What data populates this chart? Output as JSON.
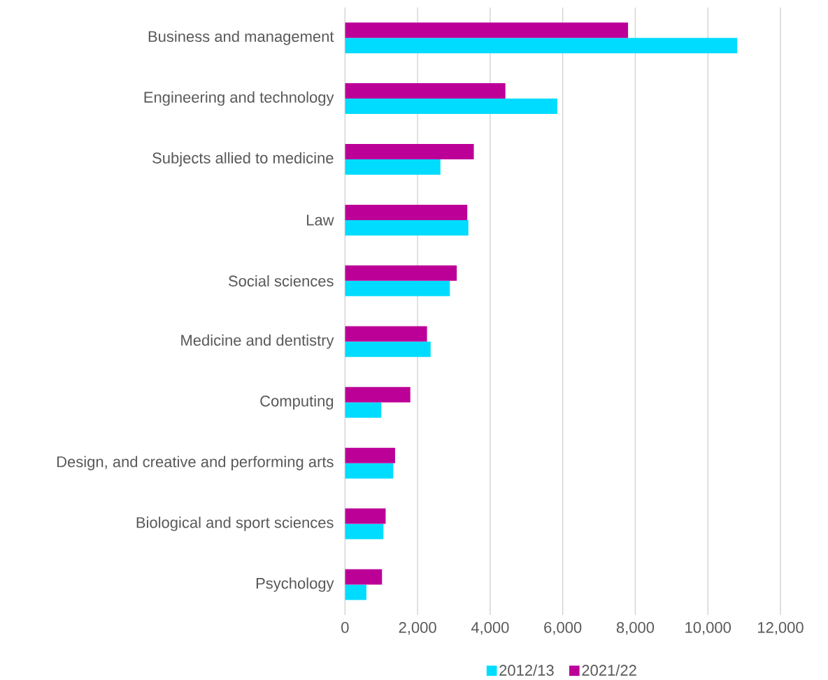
{
  "chart_data": {
    "type": "bar",
    "orientation": "horizontal",
    "categories": [
      "Business and management",
      "Engineering and technology",
      "Subjects allied to medicine",
      "Law",
      "Social sciences",
      "Medicine and dentistry",
      "Computing",
      "Design, and creative and performing arts",
      "Biological and sport sciences",
      "Psychology"
    ],
    "series": [
      {
        "name": "2012/13",
        "color": "#00dcff",
        "values": [
          10810,
          5850,
          2630,
          3400,
          2890,
          2360,
          1000,
          1330,
          1060,
          590
        ]
      },
      {
        "name": "2021/22",
        "color": "#bc0097",
        "values": [
          7800,
          4420,
          3550,
          3370,
          3080,
          2260,
          1800,
          1380,
          1120,
          1020
        ]
      }
    ],
    "xlim": [
      0,
      12000
    ],
    "xticks": [
      {
        "value": 0,
        "label": "0"
      },
      {
        "value": 2000,
        "label": "2,000"
      },
      {
        "value": 4000,
        "label": "4,000"
      },
      {
        "value": 6000,
        "label": "6,000"
      },
      {
        "value": 8000,
        "label": "8,000"
      },
      {
        "value": 10000,
        "label": "10,000"
      },
      {
        "value": 12000,
        "label": "12,000"
      }
    ],
    "grid": "x",
    "legend": "bottom"
  }
}
